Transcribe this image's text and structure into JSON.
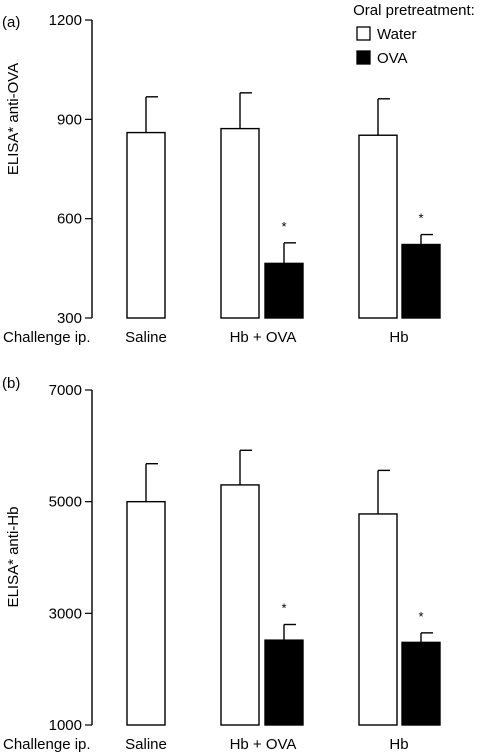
{
  "legend": {
    "title": "Oral pretreatment:",
    "items": [
      {
        "label": "Water",
        "fill": "#ffffff"
      },
      {
        "label": "OVA",
        "fill": "#000000"
      }
    ]
  },
  "colors": {
    "water": "#ffffff",
    "ova": "#000000",
    "stroke": "#000000"
  },
  "chart_data": [
    {
      "type": "bar",
      "panel": "(a)",
      "ylabel": "ELISA* anti-OVA",
      "ylim": [
        300,
        1200
      ],
      "yticks": [
        "300",
        "600",
        "900",
        "1200"
      ],
      "xlabel": "Challenge ip.",
      "categories": [
        "Saline",
        "Hb + OVA",
        "Hb"
      ],
      "legend_placement": "top-right",
      "grid": false,
      "series": [
        {
          "name": "Water",
          "values": [
            860,
            872,
            852
          ],
          "errors": [
            108,
            108,
            110
          ],
          "significance": [
            "",
            "",
            ""
          ]
        },
        {
          "name": "OVA",
          "values": [
            null,
            465,
            522
          ],
          "errors": [
            null,
            62,
            30
          ],
          "significance": [
            "",
            "*",
            "*"
          ]
        }
      ]
    },
    {
      "type": "bar",
      "panel": "(b)",
      "ylabel": "ELISA* anti-Hb",
      "ylim": [
        1000,
        7000
      ],
      "yticks": [
        "1000",
        "3000",
        "5000",
        "7000"
      ],
      "xlabel": "Challenge ip.",
      "categories": [
        "Saline",
        "Hb + OVA",
        "Hb"
      ],
      "grid": false,
      "series": [
        {
          "name": "Water",
          "values": [
            5000,
            5300,
            4780
          ],
          "errors": [
            680,
            620,
            780
          ],
          "significance": [
            "",
            "",
            ""
          ]
        },
        {
          "name": "OVA",
          "values": [
            null,
            2520,
            2480
          ],
          "errors": [
            null,
            280,
            170
          ],
          "significance": [
            "",
            "*",
            "*"
          ]
        }
      ]
    }
  ]
}
